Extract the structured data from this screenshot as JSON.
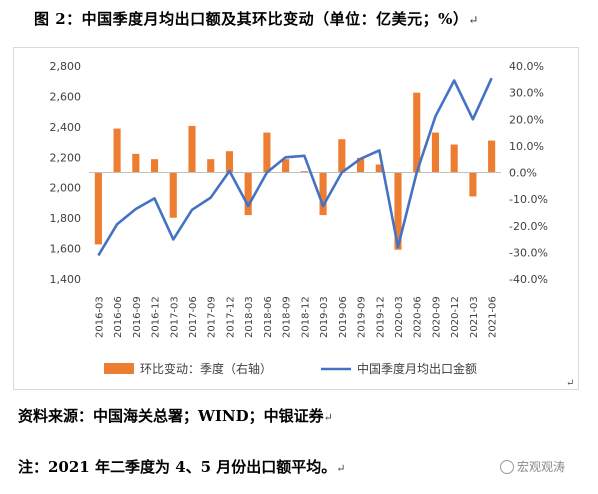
{
  "title": "图 2：中国季度月均出口额及其环比变动（单位：亿美元；%）",
  "source_text": "资料来源：中国海关总署；WIND；中银证券",
  "note_text": "注：2021 年二季度为 4、5 月份出口额平均。",
  "watermark": "宏观观涛",
  "paragraph_mark": "↵",
  "colors": {
    "bar": "#ed7d31",
    "line": "#4472c4",
    "axis": "#bfbfbf",
    "grid": "#d9d9d9"
  },
  "chart_data": {
    "type": "bar+line",
    "categories": [
      "2016-03",
      "2016-06",
      "2016-09",
      "2016-12",
      "2017-03",
      "2017-06",
      "2017-09",
      "2017-12",
      "2018-03",
      "2018-06",
      "2018-09",
      "2018-12",
      "2019-03",
      "2019-06",
      "2019-09",
      "2019-12",
      "2020-03",
      "2020-06",
      "2020-09",
      "2020-12",
      "2021-03",
      "2021-06"
    ],
    "left_axis": {
      "min": 1400,
      "max": 2800,
      "ticks": [
        "1,400",
        "1,600",
        "1,800",
        "2,000",
        "2,200",
        "2,400",
        "2,600",
        "2,800"
      ]
    },
    "right_axis": {
      "min": -40,
      "max": 40,
      "ticks": [
        "-40.0%",
        "-30.0%",
        "-20.0%",
        "-10.0%",
        "0.0%",
        "10.0%",
        "20.0%",
        "30.0%",
        "40.0%"
      ]
    },
    "series": [
      {
        "name": "环比变动：季度（右轴）",
        "type": "bar",
        "axis": "right",
        "values": [
          -27,
          16.5,
          7,
          5,
          -17,
          17.5,
          5,
          8,
          -16,
          15,
          5,
          0.5,
          -16,
          12.5,
          5.5,
          3,
          -29,
          30,
          15,
          10.5,
          -9,
          12
        ]
      },
      {
        "name": "中国季度月均出口金额",
        "type": "line",
        "axis": "left",
        "values": [
          1555,
          1760,
          1860,
          1930,
          1660,
          1855,
          1935,
          2110,
          1880,
          2100,
          2200,
          2210,
          1880,
          2100,
          2190,
          2245,
          1610,
          2100,
          2470,
          2705,
          2450,
          2720
        ]
      }
    ],
    "legend_position": "bottom",
    "grid": false
  }
}
